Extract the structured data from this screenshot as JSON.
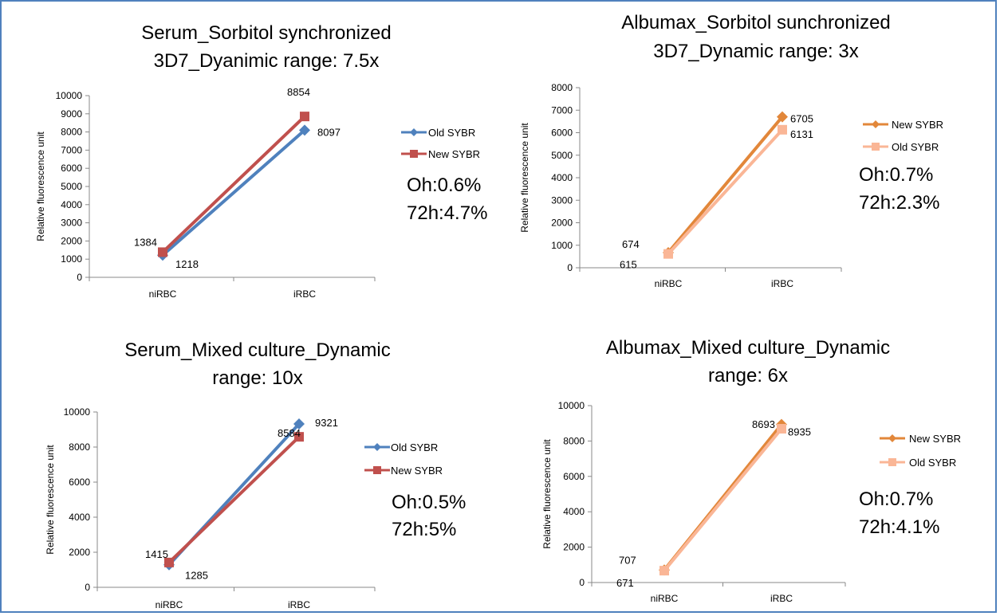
{
  "chart_data": [
    {
      "type": "line",
      "title_lines": [
        "Serum_Sorbitol synchronized",
        "3D7_Dyanimic range: 7.5x"
      ],
      "ylabel": "Relative fluorescence unit",
      "categories": [
        "niRBC",
        "iRBC"
      ],
      "ylim": [
        0,
        10000
      ],
      "yticks": [
        0,
        1000,
        2000,
        3000,
        4000,
        5000,
        6000,
        7000,
        8000,
        9000,
        10000
      ],
      "legend_position": "right",
      "series": [
        {
          "name": "Old SYBR",
          "values": [
            1218,
            8097
          ],
          "color": "#4f81bd",
          "marker": "diamond"
        },
        {
          "name": "New SYBR",
          "values": [
            1384,
            8854
          ],
          "color": "#c0504d",
          "marker": "square"
        }
      ],
      "notes": [
        "Oh:0.6%",
        "72h:4.7%"
      ]
    },
    {
      "type": "line",
      "title_lines": [
        "Albumax_Sorbitol sunchronized",
        "3D7_Dynamic range: 3x"
      ],
      "ylabel": "Relative fluorescence unit",
      "categories": [
        "niRBC",
        "iRBC"
      ],
      "ylim": [
        0,
        8000
      ],
      "yticks": [
        0,
        1000,
        2000,
        3000,
        4000,
        5000,
        6000,
        7000,
        8000
      ],
      "legend_position": "right",
      "series": [
        {
          "name": "New SYBR",
          "values": [
            674,
            6705
          ],
          "color": "#e2873a",
          "marker": "diamond"
        },
        {
          "name": "Old SYBR",
          "values": [
            615,
            6131
          ],
          "color": "#fab696",
          "marker": "square"
        }
      ],
      "notes": [
        "Oh:0.7%",
        "72h:2.3%"
      ]
    },
    {
      "type": "line",
      "title_lines": [
        "Serum_Mixed culture_Dynamic",
        "range: 10x"
      ],
      "ylabel": "Relative fluorescence unit",
      "categories": [
        "niRBC",
        "iRBC"
      ],
      "ylim": [
        0,
        10000
      ],
      "yticks": [
        0,
        2000,
        4000,
        6000,
        8000,
        10000
      ],
      "legend_position": "right",
      "series": [
        {
          "name": "Old SYBR",
          "values": [
            1285,
            9321
          ],
          "color": "#4f81bd",
          "marker": "diamond"
        },
        {
          "name": "New SYBR",
          "values": [
            1415,
            8584
          ],
          "color": "#c0504d",
          "marker": "square"
        }
      ],
      "notes": [
        "Oh:0.5%",
        "72h:5%"
      ]
    },
    {
      "type": "line",
      "title_lines": [
        "Albumax_Mixed culture_Dynamic",
        "range: 6x"
      ],
      "ylabel": "Relative fluorescence unit",
      "categories": [
        "niRBC",
        "iRBC"
      ],
      "ylim": [
        0,
        10000
      ],
      "yticks": [
        0,
        2000,
        4000,
        6000,
        8000,
        10000
      ],
      "legend_position": "right",
      "series": [
        {
          "name": "New SYBR",
          "values": [
            707,
            8935
          ],
          "color": "#e2873a",
          "marker": "diamond"
        },
        {
          "name": "Old SYBR",
          "values": [
            671,
            8693
          ],
          "color": "#fab696",
          "marker": "square"
        }
      ],
      "notes": [
        "Oh:0.7%",
        "72h:4.1%"
      ]
    }
  ]
}
